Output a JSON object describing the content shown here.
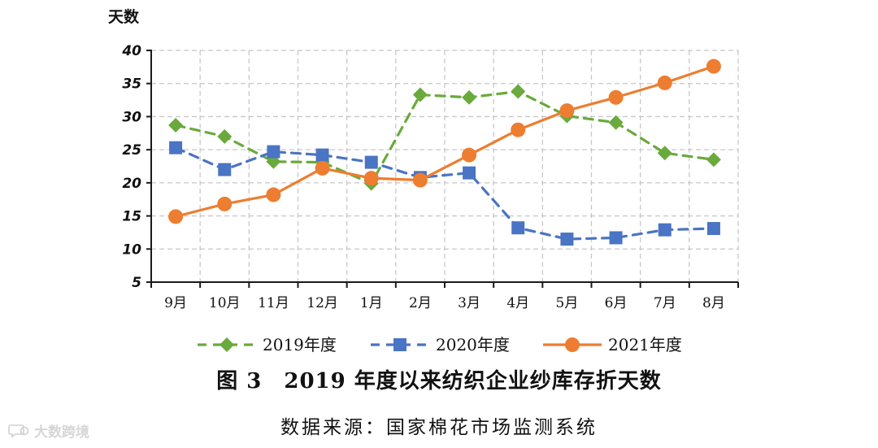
{
  "chart_data": {
    "type": "line",
    "ylabel": "天数",
    "ylim": [
      5,
      40
    ],
    "yticks": [
      5,
      10,
      15,
      20,
      25,
      30,
      35,
      40
    ],
    "grid": true,
    "legend_position": "bottom",
    "categories": [
      "9月",
      "10月",
      "11月",
      "12月",
      "1月",
      "2月",
      "3月",
      "4月",
      "5月",
      "6月",
      "7月",
      "8月"
    ],
    "series": [
      {
        "name": "2019年度",
        "color": "#6aaa3c",
        "line_style": "dashed",
        "marker": "diamond",
        "values": [
          28.7,
          27.0,
          23.2,
          23.1,
          19.9,
          33.3,
          32.9,
          33.8,
          30.1,
          29.1,
          24.5,
          23.5
        ]
      },
      {
        "name": "2020年度",
        "color": "#4a74c4",
        "line_style": "dashed",
        "marker": "square",
        "values": [
          25.3,
          22.0,
          24.7,
          24.2,
          23.1,
          20.8,
          21.5,
          13.2,
          11.5,
          11.7,
          12.9,
          13.1
        ]
      },
      {
        "name": "2021年度",
        "color": "#ed7d31",
        "line_style": "solid",
        "marker": "circle",
        "values": [
          14.9,
          16.8,
          18.2,
          22.2,
          20.7,
          20.4,
          24.2,
          28.0,
          30.9,
          32.9,
          35.1,
          37.6
        ]
      }
    ]
  },
  "caption": {
    "figure": "图 3　2019 年度以来纺织企业纱库存折天数",
    "source": "数据来源：国家棉花市场监测系统"
  },
  "watermark": {
    "text": "大数跨境"
  }
}
